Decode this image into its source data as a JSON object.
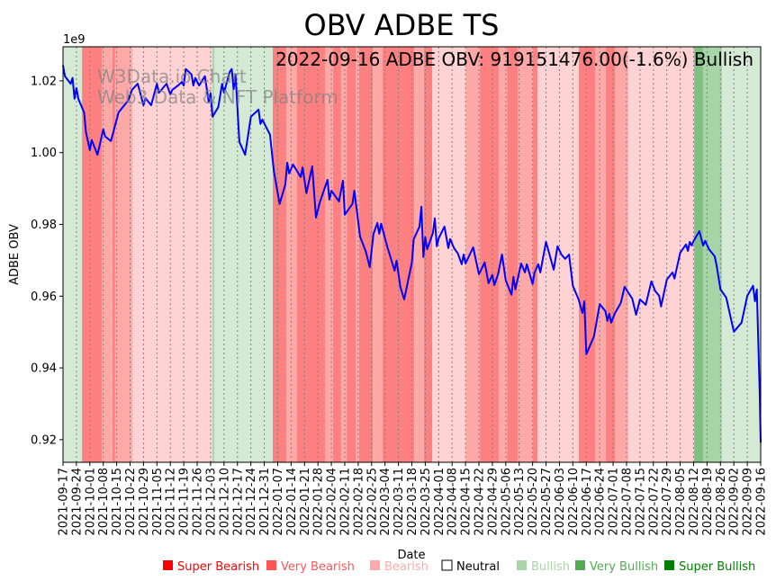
{
  "chart_data": {
    "type": "line",
    "title": "OBV ADBE TS",
    "annotation": "2022-09-16 ADBE OBV: 919151476.00(-1.6%) Bullish",
    "watermark": [
      "W3Data.io Chart",
      "Web3 Data & NFT Platform"
    ],
    "xlabel": "Date",
    "ylabel": "ADBE OBV",
    "y_scale_label": "1e9",
    "x_start_date": "2021-09-17",
    "x_unit": "days since 2021-09-17",
    "xlim": [
      0,
      364
    ],
    "ylim": [
      0.9137,
      1.0295
    ],
    "y_ticks": [
      0.92,
      0.94,
      0.96,
      0.98,
      1.0,
      1.02
    ],
    "y_tick_labels": [
      "0.92",
      "0.94",
      "0.96",
      "0.98",
      "1.00",
      "1.02"
    ],
    "grid": "vertical dotted at weekly ticks",
    "x_tick_labels": [
      "2021-09-17",
      "2021-09-24",
      "2021-10-01",
      "2021-10-08",
      "2021-10-15",
      "2021-10-22",
      "2021-10-29",
      "2021-11-05",
      "2021-11-12",
      "2021-11-19",
      "2021-11-26",
      "2021-12-03",
      "2021-12-10",
      "2021-12-17",
      "2021-12-24",
      "2021-12-31",
      "2022-01-07",
      "2022-01-14",
      "2022-01-21",
      "2022-01-28",
      "2022-02-04",
      "2022-02-11",
      "2022-02-18",
      "2022-02-25",
      "2022-03-04",
      "2022-03-11",
      "2022-03-18",
      "2022-03-25",
      "2022-04-01",
      "2022-04-08",
      "2022-04-15",
      "2022-04-22",
      "2022-04-29",
      "2022-05-06",
      "2022-05-13",
      "2022-05-20",
      "2022-05-27",
      "2022-06-03",
      "2022-06-10",
      "2022-06-17",
      "2022-06-24",
      "2022-07-01",
      "2022-07-08",
      "2022-07-15",
      "2022-07-22",
      "2022-07-29",
      "2022-08-05",
      "2022-08-12",
      "2022-08-19",
      "2022-08-26",
      "2022-09-02",
      "2022-09-09",
      "2022-09-16"
    ],
    "tick_interval_days": 7,
    "line_color": "#0000ff",
    "series": [
      {
        "name": "ADBE OBV (1e9)",
        "points": [
          [
            0,
            1.0243
          ],
          [
            1,
            1.0213
          ],
          [
            4,
            1.0192
          ],
          [
            5,
            1.0208
          ],
          [
            6,
            1.015
          ],
          [
            7,
            1.018
          ],
          [
            8,
            1.015
          ],
          [
            11,
            1.0112
          ],
          [
            12,
            1.0057
          ],
          [
            14,
            1.0007
          ],
          [
            15,
            1.0035
          ],
          [
            18,
            0.9994
          ],
          [
            21,
            1.0065
          ],
          [
            22,
            1.0045
          ],
          [
            25,
            1.0032
          ],
          [
            29,
            1.0112
          ],
          [
            32,
            1.0132
          ],
          [
            34,
            1.0145
          ],
          [
            36,
            1.0175
          ],
          [
            39,
            1.0192
          ],
          [
            42,
            1.0132
          ],
          [
            43,
            1.0152
          ],
          [
            46,
            1.0132
          ],
          [
            49,
            1.0192
          ],
          [
            50,
            1.0167
          ],
          [
            54,
            1.0192
          ],
          [
            56,
            1.0162
          ],
          [
            57,
            1.0175
          ],
          [
            60,
            1.0187
          ],
          [
            62,
            1.0197
          ],
          [
            63,
            1.0187
          ],
          [
            64,
            1.0233
          ],
          [
            67,
            1.0218
          ],
          [
            68,
            1.0187
          ],
          [
            69,
            1.0208
          ],
          [
            71,
            1.0187
          ],
          [
            74,
            1.0213
          ],
          [
            76,
            1.0142
          ],
          [
            77,
            1.0165
          ],
          [
            78,
            1.01
          ],
          [
            81,
            1.0127
          ],
          [
            83,
            1.0192
          ],
          [
            84,
            1.0167
          ],
          [
            87,
            1.0225
          ],
          [
            88,
            1.0233
          ],
          [
            89,
            1.0177
          ],
          [
            90,
            1.0218
          ],
          [
            92,
            1.003
          ],
          [
            95,
            0.9994
          ],
          [
            98,
            1.01
          ],
          [
            102,
            1.012
          ],
          [
            103,
            1.008
          ],
          [
            104,
            1.0092
          ],
          [
            108,
            1.005
          ],
          [
            110,
            0.9949
          ],
          [
            113,
            0.9857
          ],
          [
            116,
            0.9912
          ],
          [
            117,
            0.9972
          ],
          [
            118,
            0.9942
          ],
          [
            120,
            0.9967
          ],
          [
            124,
            0.9932
          ],
          [
            125,
            0.9959
          ],
          [
            127,
            0.9887
          ],
          [
            130,
            0.9962
          ],
          [
            132,
            0.9819
          ],
          [
            134,
            0.9862
          ],
          [
            138,
            0.9924
          ],
          [
            139,
            0.9869
          ],
          [
            140,
            0.9894
          ],
          [
            144,
            0.9864
          ],
          [
            146,
            0.9922
          ],
          [
            147,
            0.9827
          ],
          [
            151,
            0.9857
          ],
          [
            152,
            0.9894
          ],
          [
            155,
            0.9766
          ],
          [
            158,
            0.9724
          ],
          [
            160,
            0.9681
          ],
          [
            162,
            0.9774
          ],
          [
            164,
            0.9804
          ],
          [
            165,
            0.9774
          ],
          [
            166,
            0.9802
          ],
          [
            169,
            0.9741
          ],
          [
            171,
            0.9706
          ],
          [
            173,
            0.9671
          ],
          [
            174,
            0.9699
          ],
          [
            176,
            0.9626
          ],
          [
            178,
            0.9591
          ],
          [
            182,
            0.9694
          ],
          [
            183,
            0.9759
          ],
          [
            186,
            0.9794
          ],
          [
            187,
            0.9849
          ],
          [
            188,
            0.9709
          ],
          [
            189,
            0.9764
          ],
          [
            190,
            0.9731
          ],
          [
            193,
            0.9776
          ],
          [
            194,
            0.9817
          ],
          [
            195,
            0.9739
          ],
          [
            196,
            0.9761
          ],
          [
            199,
            0.9794
          ],
          [
            201,
            0.9734
          ],
          [
            202,
            0.9759
          ],
          [
            204,
            0.9734
          ],
          [
            206,
            0.9719
          ],
          [
            208,
            0.9689
          ],
          [
            209,
            0.9716
          ],
          [
            210,
            0.9691
          ],
          [
            214,
            0.9736
          ],
          [
            217,
            0.9661
          ],
          [
            220,
            0.9694
          ],
          [
            222,
            0.9636
          ],
          [
            224,
            0.9659
          ],
          [
            225,
            0.9631
          ],
          [
            227,
            0.9661
          ],
          [
            229,
            0.9716
          ],
          [
            231,
            0.9644
          ],
          [
            234,
            0.9604
          ],
          [
            235,
            0.9654
          ],
          [
            236,
            0.9619
          ],
          [
            239,
            0.9691
          ],
          [
            241,
            0.9666
          ],
          [
            242,
            0.9689
          ],
          [
            245,
            0.9634
          ],
          [
            246,
            0.9666
          ],
          [
            248,
            0.9689
          ],
          [
            249,
            0.9666
          ],
          [
            252,
            0.9751
          ],
          [
            256,
            0.9674
          ],
          [
            258,
            0.9739
          ],
          [
            260,
            0.9716
          ],
          [
            262,
            0.9704
          ],
          [
            264,
            0.9716
          ],
          [
            266,
            0.9629
          ],
          [
            269,
            0.9591
          ],
          [
            271,
            0.9553
          ],
          [
            272,
            0.9586
          ],
          [
            273,
            0.9438
          ],
          [
            277,
            0.9488
          ],
          [
            280,
            0.9578
          ],
          [
            283,
            0.9558
          ],
          [
            284,
            0.9531
          ],
          [
            285,
            0.9551
          ],
          [
            286,
            0.9526
          ],
          [
            288,
            0.9553
          ],
          [
            291,
            0.9581
          ],
          [
            293,
            0.9626
          ],
          [
            295,
            0.9609
          ],
          [
            297,
            0.9593
          ],
          [
            299,
            0.9548
          ],
          [
            301,
            0.9591
          ],
          [
            304,
            0.9576
          ],
          [
            307,
            0.9641
          ],
          [
            309,
            0.9614
          ],
          [
            311,
            0.9601
          ],
          [
            312,
            0.9571
          ],
          [
            315,
            0.9646
          ],
          [
            318,
            0.9666
          ],
          [
            319,
            0.9649
          ],
          [
            322,
            0.9721
          ],
          [
            325,
            0.9744
          ],
          [
            326,
            0.9726
          ],
          [
            327,
            0.9751
          ],
          [
            328,
            0.9741
          ],
          [
            329,
            0.9754
          ],
          [
            332,
            0.9781
          ],
          [
            334,
            0.9741
          ],
          [
            335,
            0.9754
          ],
          [
            337,
            0.9731
          ],
          [
            340,
            0.9711
          ],
          [
            341,
            0.9686
          ],
          [
            343,
            0.9619
          ],
          [
            346,
            0.9596
          ],
          [
            350,
            0.9501
          ],
          [
            354,
            0.9526
          ],
          [
            357,
            0.9601
          ],
          [
            360,
            0.9629
          ],
          [
            361,
            0.9586
          ],
          [
            362,
            0.9619
          ],
          [
            363.5,
            0.933
          ],
          [
            364,
            0.9192
          ]
        ]
      }
    ],
    "band_colors": {
      "weak_bullish": "#d4ead4",
      "bullish": "#a8d5a8",
      "very_bullish": "#80c080",
      "weak_bearish": "#ffd3d3",
      "bearish": "#ffa8a8",
      "very_bearish": "#ff8080"
    },
    "bands": [
      [
        0,
        9.9,
        "weak_bullish"
      ],
      [
        9.9,
        20.2,
        "very_bearish"
      ],
      [
        20.2,
        25.8,
        "bearish"
      ],
      [
        25.8,
        27.2,
        "very_bearish"
      ],
      [
        27.2,
        36.2,
        "bearish"
      ],
      [
        36.2,
        78,
        "weak_bearish"
      ],
      [
        78,
        78.9,
        "bullish"
      ],
      [
        78.9,
        109.4,
        "weak_bullish"
      ],
      [
        109.4,
        116.5,
        "very_bearish"
      ],
      [
        116.5,
        122.1,
        "bearish"
      ],
      [
        122.1,
        136.7,
        "very_bearish"
      ],
      [
        136.7,
        140.9,
        "bearish"
      ],
      [
        140.9,
        145.1,
        "very_bearish"
      ],
      [
        145.1,
        148,
        "bearish"
      ],
      [
        148,
        152.7,
        "very_bearish"
      ],
      [
        152.7,
        154.5,
        "bearish"
      ],
      [
        154.5,
        161.6,
        "very_bearish"
      ],
      [
        161.6,
        166.7,
        "bearish"
      ],
      [
        166.7,
        183.2,
        "very_bearish"
      ],
      [
        183.2,
        188.3,
        "bearish"
      ],
      [
        188.3,
        192.6,
        "very_bearish"
      ],
      [
        192.6,
        210,
        "weak_bearish"
      ],
      [
        210,
        217.5,
        "bearish"
      ],
      [
        217.5,
        227.3,
        "very_bearish"
      ],
      [
        227.3,
        231.6,
        "bearish"
      ],
      [
        231.6,
        237.2,
        "very_bearish"
      ],
      [
        237.2,
        245.2,
        "bearish"
      ],
      [
        245.2,
        247.5,
        "very_bearish"
      ],
      [
        247.5,
        269.1,
        "weak_bearish"
      ],
      [
        269.1,
        277.6,
        "very_bearish"
      ],
      [
        277.6,
        283.2,
        "bearish"
      ],
      [
        283.2,
        287.9,
        "very_bearish"
      ],
      [
        287.9,
        294.9,
        "bearish"
      ],
      [
        294.9,
        329.3,
        "weak_bearish"
      ],
      [
        329.3,
        333.9,
        "very_bullish"
      ],
      [
        333.9,
        343.8,
        "bullish"
      ],
      [
        343.8,
        364,
        "weak_bullish"
      ]
    ],
    "legend": {
      "placement": "bottom",
      "items": [
        {
          "label": "Super Bearish",
          "color": "#ff0000",
          "text_color": "#ff0000"
        },
        {
          "label": "Very Bearish",
          "color": "#ff5555",
          "text_color": "#ff5555"
        },
        {
          "label": "Bearish",
          "color": "#ffaaaa",
          "text_color": "#ffaaaa"
        },
        {
          "label": "Neutral",
          "color": "#ffffff",
          "text_color": "#000000"
        },
        {
          "label": "Bullish",
          "color": "#aad5aa",
          "text_color": "#aad5aa"
        },
        {
          "label": "Very Bullish",
          "color": "#55aa55",
          "text_color": "#55aa55"
        },
        {
          "label": "Super Bullish",
          "color": "#008000",
          "text_color": "#008000"
        }
      ]
    }
  }
}
